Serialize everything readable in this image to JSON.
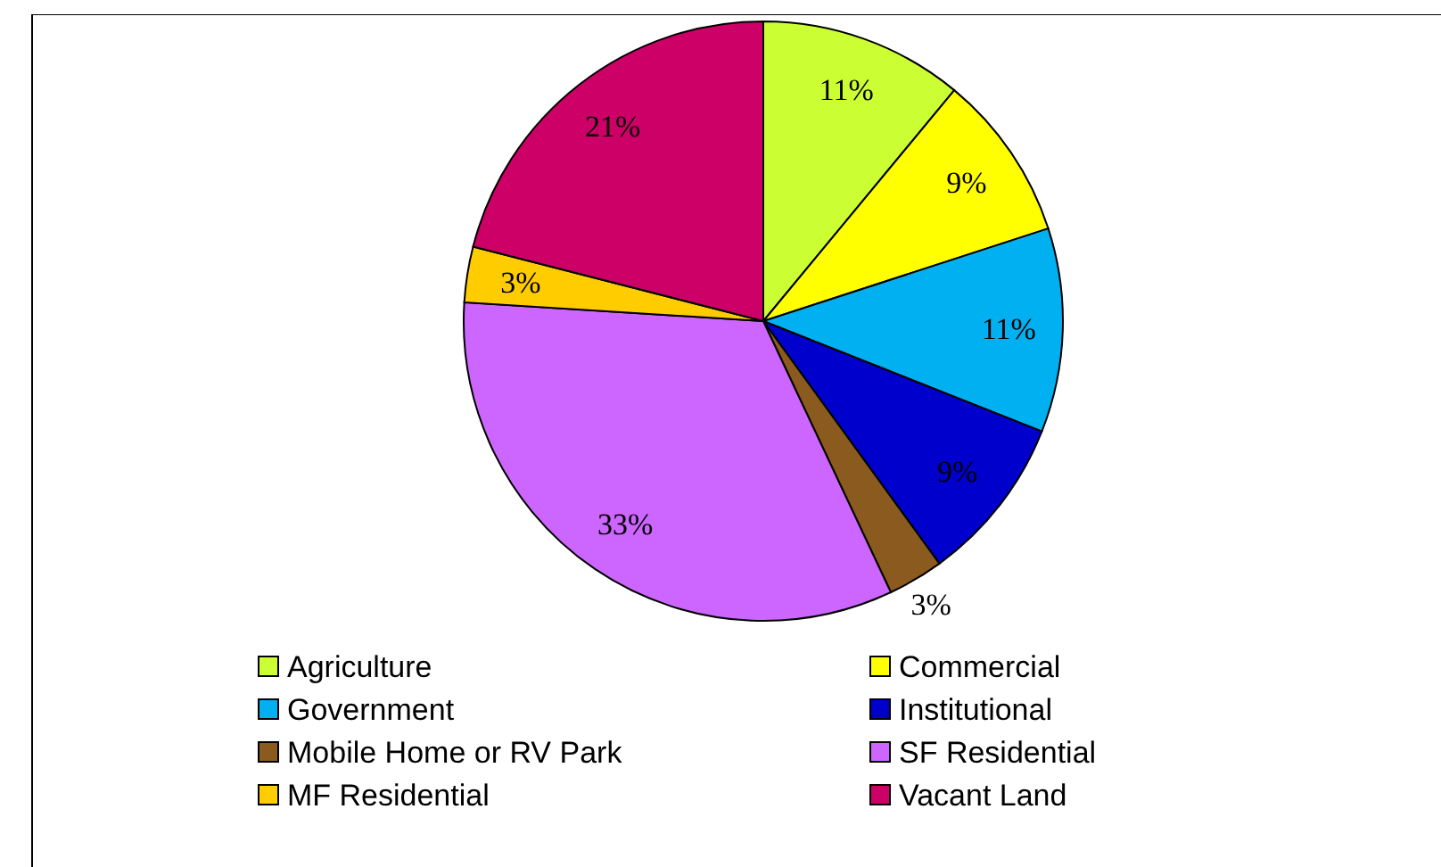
{
  "chart_data": {
    "type": "pie",
    "categories": [
      "Agriculture",
      "Commercial",
      "Government",
      "Institutional",
      "Mobile Home or RV Park",
      "SF Residential",
      "MF Residential",
      "Vacant Land"
    ],
    "values": [
      11,
      9,
      11,
      9,
      3,
      33,
      3,
      21
    ],
    "colors": [
      "#ccff33",
      "#ffff00",
      "#00b0f0",
      "#0000cc",
      "#8b5a1e",
      "#cc66ff",
      "#ffcc00",
      "#cc0066"
    ],
    "value_labels": [
      "11%",
      "9%",
      "11%",
      "9%",
      "3%",
      "33%",
      "3%",
      "21%"
    ],
    "legend": "bottom"
  }
}
